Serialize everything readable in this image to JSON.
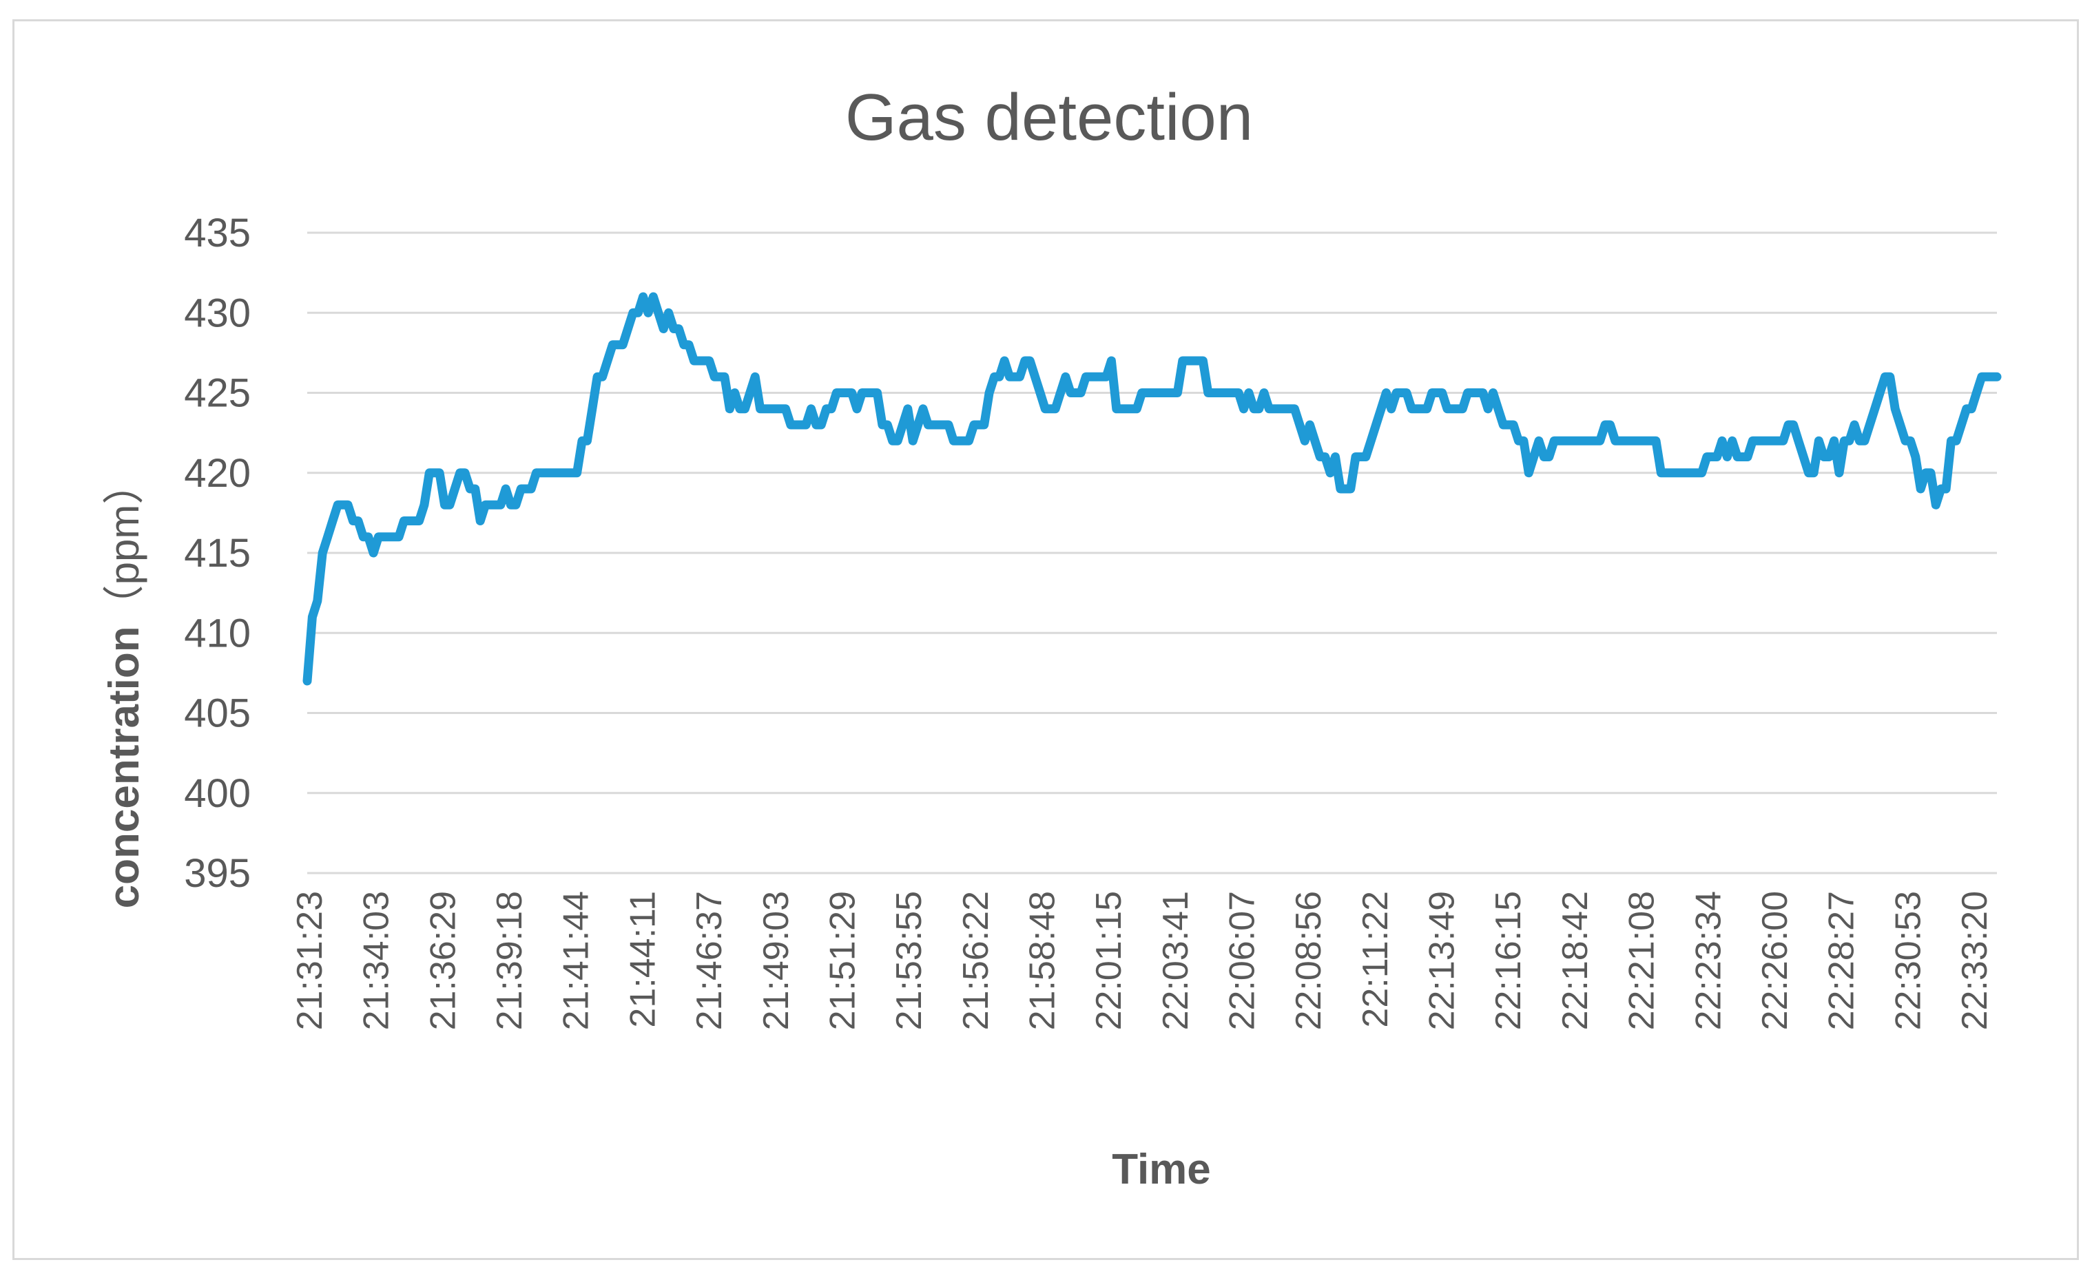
{
  "chart_data": {
    "type": "line",
    "title": "Gas detection",
    "xlabel": "Time",
    "ylabel": "concentration",
    "ylabel_unit": "（ppm）",
    "ylim": [
      395,
      435
    ],
    "yticks": [
      395,
      400,
      405,
      410,
      415,
      420,
      425,
      430,
      435
    ],
    "grid": true,
    "line_color": "#1f9ad6",
    "grid_color": "#d9d9d9",
    "text_color": "#595959",
    "x_tick_labels": [
      "21:31:23",
      "21:34:03",
      "21:36:29",
      "21:39:18",
      "21:41:44",
      "21:44:11",
      "21:46:37",
      "21:49:03",
      "21:51:29",
      "21:53:55",
      "21:56:22",
      "21:58:48",
      "22:01:15",
      "22:03:41",
      "22:06:07",
      "22:08:56",
      "22:11:22",
      "22:13:49",
      "22:16:15",
      "22:18:42",
      "22:21:08",
      "22:23:34",
      "22:26:00",
      "22:28:27",
      "22:30:53",
      "22:33:20"
    ],
    "series": [
      {
        "values": [
          407,
          411,
          412,
          415,
          416,
          417,
          418,
          418,
          418,
          417,
          417,
          416,
          416,
          415,
          416,
          416,
          416,
          416,
          416,
          417,
          417,
          417,
          417,
          418,
          420,
          420,
          420,
          418,
          418,
          419,
          420,
          420,
          419,
          419,
          417,
          418,
          418,
          418,
          418,
          419,
          418,
          418,
          419,
          419,
          419,
          420,
          420,
          420,
          420,
          420,
          420,
          420,
          420,
          420,
          422,
          422,
          424,
          426,
          426,
          427,
          428,
          428,
          428,
          429,
          430,
          430,
          431,
          430,
          431,
          430,
          429,
          430,
          429,
          429,
          428,
          428,
          427,
          427,
          427,
          427,
          426,
          426,
          426,
          424,
          425,
          424,
          424,
          425,
          426,
          424,
          424,
          424,
          424,
          424,
          424,
          423,
          423,
          423,
          423,
          424,
          423,
          423,
          424,
          424,
          425,
          425,
          425,
          425,
          424,
          425,
          425,
          425,
          425,
          423,
          423,
          422,
          422,
          423,
          424,
          422,
          423,
          424,
          423,
          423,
          423,
          423,
          423,
          422,
          422,
          422,
          422,
          423,
          423,
          423,
          425,
          426,
          426,
          427,
          426,
          426,
          426,
          427,
          427,
          426,
          425,
          424,
          424,
          424,
          425,
          426,
          425,
          425,
          425,
          426,
          426,
          426,
          426,
          426,
          427,
          424,
          424,
          424,
          424,
          424,
          425,
          425,
          425,
          425,
          425,
          425,
          425,
          425,
          427,
          427,
          427,
          427,
          427,
          425,
          425,
          425,
          425,
          425,
          425,
          425,
          424,
          425,
          424,
          424,
          425,
          424,
          424,
          424,
          424,
          424,
          424,
          423,
          422,
          423,
          422,
          421,
          421,
          420,
          421,
          419,
          419,
          419,
          421,
          421,
          421,
          422,
          423,
          424,
          425,
          424,
          425,
          425,
          425,
          424,
          424,
          424,
          424,
          425,
          425,
          425,
          424,
          424,
          424,
          424,
          425,
          425,
          425,
          425,
          424,
          425,
          424,
          423,
          423,
          423,
          422,
          422,
          420,
          421,
          422,
          421,
          421,
          422,
          422,
          422,
          422,
          422,
          422,
          422,
          422,
          422,
          422,
          423,
          423,
          422,
          422,
          422,
          422,
          422,
          422,
          422,
          422,
          422,
          420,
          420,
          420,
          420,
          420,
          420,
          420,
          420,
          420,
          421,
          421,
          421,
          422,
          421,
          422,
          421,
          421,
          421,
          422,
          422,
          422,
          422,
          422,
          422,
          422,
          423,
          423,
          422,
          421,
          420,
          420,
          422,
          421,
          421,
          422,
          420,
          422,
          422,
          423,
          422,
          422,
          423,
          424,
          425,
          426,
          426,
          424,
          423,
          422,
          422,
          421,
          419,
          420,
          420,
          418,
          419,
          419,
          422,
          422,
          423,
          424,
          424,
          425,
          426,
          426,
          426,
          426
        ]
      }
    ]
  }
}
